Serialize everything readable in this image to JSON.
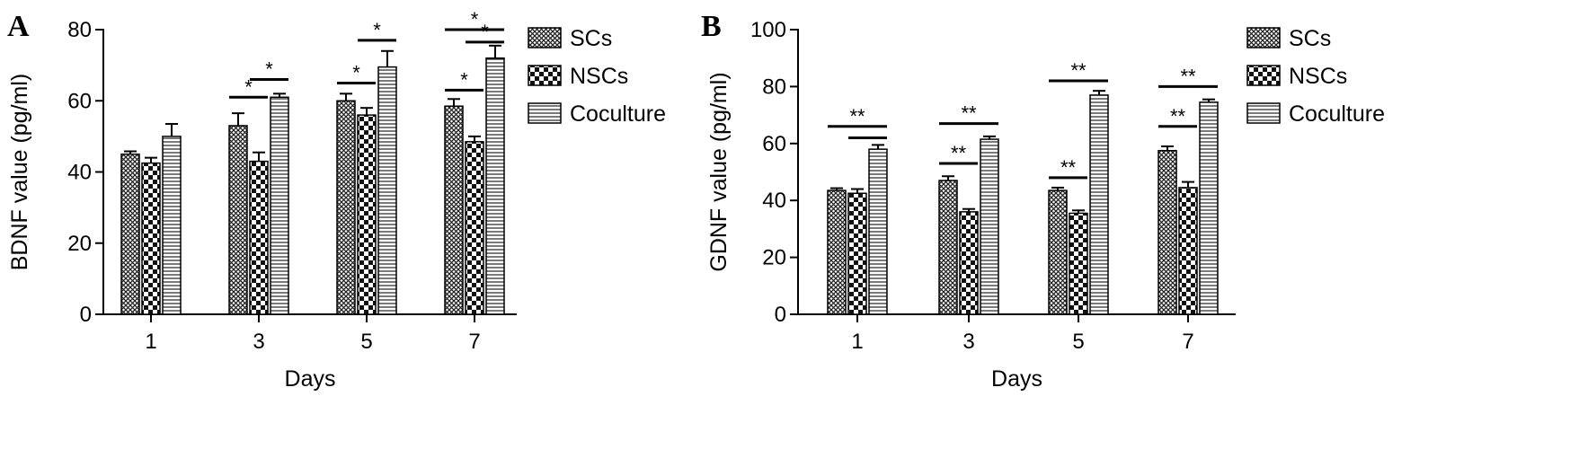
{
  "chart_data": [
    {
      "panel": "A",
      "type": "bar",
      "xlabel": "Days",
      "ylabel": "BDNF value (pg/ml)",
      "categories": [
        "1",
        "3",
        "5",
        "7"
      ],
      "ylim": [
        0,
        80
      ],
      "yticks": [
        0,
        20,
        40,
        60,
        80
      ],
      "legend_position": "top-right",
      "series": [
        {
          "name": "SCs",
          "values": [
            45,
            53,
            60,
            58.5
          ],
          "errors": [
            0.8,
            3.5,
            2,
            2
          ],
          "pattern": "crosshatch"
        },
        {
          "name": "NSCs",
          "values": [
            42.5,
            43,
            56,
            48.5
          ],
          "errors": [
            1.5,
            2.5,
            2,
            1.5
          ],
          "pattern": "checker"
        },
        {
          "name": "Coculture",
          "values": [
            50,
            61,
            69.5,
            72
          ],
          "errors": [
            3.5,
            1,
            4.5,
            3.5
          ],
          "pattern": "horizontal"
        }
      ],
      "significance": [
        {
          "category": "3",
          "from": "SCs",
          "to": "NSCs",
          "y": 61,
          "label": "*"
        },
        {
          "category": "3",
          "from": "NSCs",
          "to": "Coculture",
          "y": 66,
          "label": "*"
        },
        {
          "category": "5",
          "from": "SCs",
          "to": "NSCs",
          "y": 65,
          "label": "*"
        },
        {
          "category": "5",
          "from": "NSCs",
          "to": "Coculture",
          "y": 77,
          "label": "*"
        },
        {
          "category": "7",
          "from": "SCs",
          "to": "NSCs",
          "y": 63,
          "label": "*"
        },
        {
          "category": "7",
          "from": "NSCs",
          "to": "Coculture",
          "y": 76.5,
          "label": "*"
        },
        {
          "category": "7",
          "from": "SCs",
          "to": "Coculture",
          "y": 80,
          "label": "*"
        }
      ]
    },
    {
      "panel": "B",
      "type": "bar",
      "xlabel": "Days",
      "ylabel": "GDNF value (pg/ml)",
      "categories": [
        "1",
        "3",
        "5",
        "7"
      ],
      "ylim": [
        0,
        100
      ],
      "yticks": [
        0,
        20,
        40,
        60,
        80,
        100
      ],
      "legend_position": "top-right",
      "series": [
        {
          "name": "SCs",
          "values": [
            43.5,
            47,
            43.5,
            57.5
          ],
          "errors": [
            0.8,
            1.5,
            1,
            1.5
          ],
          "pattern": "crosshatch"
        },
        {
          "name": "NSCs",
          "values": [
            42.5,
            36,
            35.5,
            44.5
          ],
          "errors": [
            1.5,
            1,
            1,
            2
          ],
          "pattern": "checker"
        },
        {
          "name": "Coculture",
          "values": [
            58,
            61.5,
            77,
            74.5
          ],
          "errors": [
            1.5,
            1,
            1.5,
            1
          ],
          "pattern": "horizontal"
        }
      ],
      "significance": [
        {
          "category": "1",
          "from": "SCs",
          "to": "Coculture",
          "y": 66,
          "label": "**"
        },
        {
          "category": "1",
          "from": "NSCs",
          "to": "Coculture",
          "y": 62,
          "label": ""
        },
        {
          "category": "3",
          "from": "SCs",
          "to": "NSCs",
          "y": 53,
          "label": "**"
        },
        {
          "category": "3",
          "from": "SCs",
          "to": "Coculture",
          "y": 67,
          "label": "**"
        },
        {
          "category": "5",
          "from": "SCs",
          "to": "NSCs",
          "y": 48,
          "label": "**"
        },
        {
          "category": "5",
          "from": "SCs",
          "to": "Coculture",
          "y": 82,
          "label": "**"
        },
        {
          "category": "7",
          "from": "SCs",
          "to": "NSCs",
          "y": 66,
          "label": "**"
        },
        {
          "category": "7",
          "from": "SCs",
          "to": "Coculture",
          "y": 80,
          "label": "**"
        }
      ]
    }
  ]
}
